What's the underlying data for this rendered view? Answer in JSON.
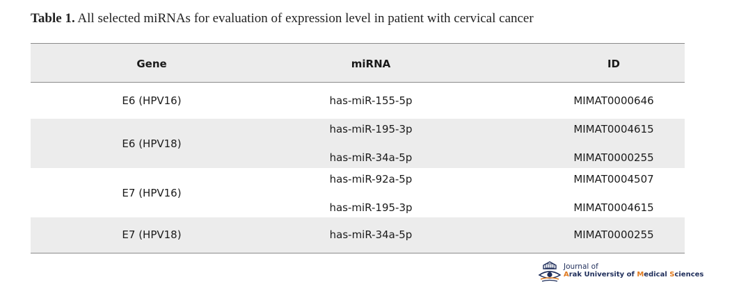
{
  "caption": {
    "label": "Table 1.",
    "text": "All selected miRNAs for evaluation of expression level in patient with cervical cancer"
  },
  "table": {
    "headers": [
      "Gene",
      "miRNA",
      "ID"
    ],
    "groups": [
      {
        "gene": "E6 (HPV16)",
        "rows": [
          {
            "mirna": "has-miR-155-5p",
            "id": "MIMAT0000646"
          }
        ]
      },
      {
        "gene": "E6 (HPV18)",
        "rows": [
          {
            "mirna": "has-miR-195-3p",
            "id": "MIMAT0004615"
          },
          {
            "mirna": "has-miR-34a-5p",
            "id": "MIMAT0000255"
          }
        ]
      },
      {
        "gene": "E7 (HPV16)",
        "rows": [
          {
            "mirna": "has-miR-92a-5p",
            "id": "MIMAT0004507"
          },
          {
            "mirna": "has-miR-195-3p",
            "id": "MIMAT0004615"
          }
        ]
      },
      {
        "gene": "E7 (HPV18)",
        "rows": [
          {
            "mirna": "has-miR-34a-5p",
            "id": "MIMAT0000255"
          }
        ]
      }
    ]
  },
  "logo": {
    "line1": "Journal of",
    "line2_a": "A",
    "line2_b": "rak University of ",
    "line2_m": "M",
    "line2_c": "edical ",
    "line2_s": "S",
    "line2_d": "ciences"
  },
  "colors": {
    "band": "#ececec",
    "rule": "#8a8a8a",
    "logo_navy": "#1e2d5a",
    "logo_orange": "#e07a1f"
  }
}
